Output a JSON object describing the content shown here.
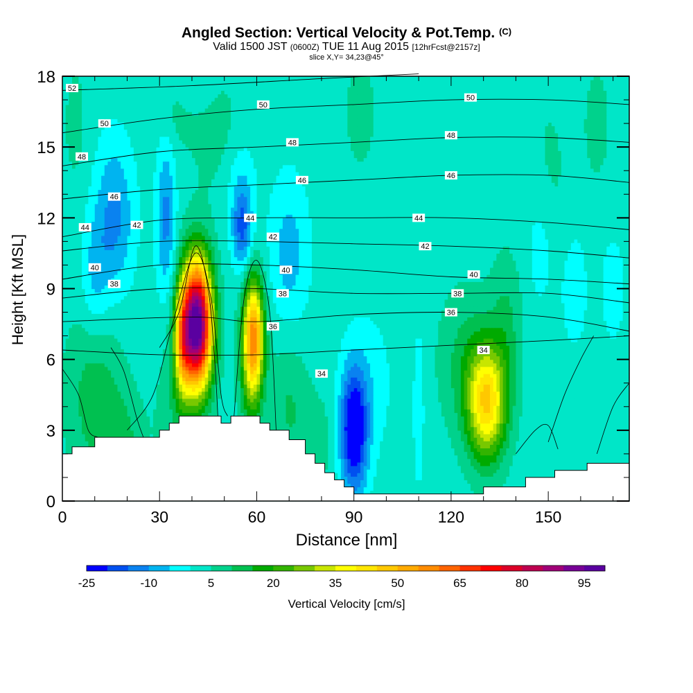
{
  "title_main": "Angled Section: Vertical Velocity & Pot.Temp.",
  "title_suffix": "(C)",
  "subtitle_a": "Valid 1500 JST",
  "subtitle_b": "(0600Z)",
  "subtitle_c": "TUE 11 Aug 2015",
  "subtitle_d": "[12hrFcst@2157z]",
  "slice_text": "slice X,Y= 34,23@45°",
  "chart_data": {
    "type": "heatmap",
    "xlabel": "Distance [nm]",
    "ylabel": "Height [Kft MSL]",
    "xlim": [
      0,
      175
    ],
    "ylim": [
      0,
      18
    ],
    "x_ticks": [
      "0",
      "30",
      "60",
      "90",
      "120",
      "150"
    ],
    "y_ticks": [
      "0",
      "3",
      "6",
      "9",
      "12",
      "15",
      "18"
    ],
    "colorbar_label": "Vertical Velocity [cm/s]",
    "colorbar_ticks": [
      "-25",
      "-10",
      "5",
      "20",
      "35",
      "50",
      "65",
      "80",
      "95"
    ],
    "colorbar_levels": [
      -25,
      -20,
      -15,
      -10,
      -5,
      0,
      5,
      10,
      15,
      20,
      25,
      30,
      35,
      40,
      45,
      50,
      55,
      60,
      65,
      70,
      75,
      80,
      85,
      90,
      95,
      100
    ],
    "colors": [
      "#0000ff",
      "#0050f0",
      "#0a82f0",
      "#00b4f0",
      "#00ffff",
      "#00e6c8",
      "#00d28c",
      "#00c050",
      "#00aa00",
      "#32b400",
      "#78c800",
      "#c8e600",
      "#ffff00",
      "#ffe600",
      "#ffc800",
      "#ffaa00",
      "#ff8c00",
      "#ff6400",
      "#ff3200",
      "#ff0000",
      "#dc0028",
      "#be0050",
      "#a00078",
      "#780096",
      "#5a00a0"
    ],
    "terrain": [
      [
        0,
        2.0
      ],
      [
        3,
        2.0
      ],
      [
        3,
        2.3
      ],
      [
        10,
        2.3
      ],
      [
        10,
        2.7
      ],
      [
        30,
        2.7
      ],
      [
        30,
        3.0
      ],
      [
        33,
        3.0
      ],
      [
        33,
        3.3
      ],
      [
        36,
        3.3
      ],
      [
        36,
        3.6
      ],
      [
        49,
        3.6
      ],
      [
        49,
        3.3
      ],
      [
        52,
        3.3
      ],
      [
        52,
        3.6
      ],
      [
        61,
        3.6
      ],
      [
        61,
        3.3
      ],
      [
        64,
        3.3
      ],
      [
        64,
        3.0
      ],
      [
        70,
        3.0
      ],
      [
        70,
        2.6
      ],
      [
        75,
        2.6
      ],
      [
        75,
        2.0
      ],
      [
        78,
        2.0
      ],
      [
        78,
        1.6
      ],
      [
        81,
        1.6
      ],
      [
        81,
        1.2
      ],
      [
        84,
        1.2
      ],
      [
        84,
        0.9
      ],
      [
        87,
        0.9
      ],
      [
        87,
        0.6
      ],
      [
        90,
        0.6
      ],
      [
        90,
        0.3
      ],
      [
        130,
        0.3
      ],
      [
        130,
        0.6
      ],
      [
        143,
        0.6
      ],
      [
        143,
        1.0
      ],
      [
        152,
        1.0
      ],
      [
        152,
        1.3
      ],
      [
        162,
        1.3
      ],
      [
        162,
        1.6
      ],
      [
        175,
        1.6
      ]
    ],
    "cores": [
      {
        "x": 41.5,
        "z": 7.5,
        "sx": 4.6,
        "sz": 2.7,
        "w": 100
      },
      {
        "x": 37,
        "z": 6.8,
        "sx": 2.6,
        "sz": 2.3,
        "w": 30
      },
      {
        "x": 59,
        "z": 7.0,
        "sx": 3.2,
        "sz": 2.4,
        "w": 52
      },
      {
        "x": 58,
        "z": 5.0,
        "sx": 3.5,
        "sz": 2.5,
        "w": 10
      },
      {
        "x": 131,
        "z": 4.2,
        "sx": 6.0,
        "sz": 2.4,
        "w": 42
      },
      {
        "x": 124,
        "z": 6.0,
        "sx": 8,
        "sz": 3,
        "w": 8
      },
      {
        "x": 137,
        "z": 7.5,
        "sx": 5,
        "sz": 3,
        "w": 8
      },
      {
        "x": 10,
        "z": 4.5,
        "sx": 9,
        "sz": 3.5,
        "w": 10
      },
      {
        "x": 18,
        "z": 2.5,
        "sx": 7,
        "sz": 2,
        "w": 8
      },
      {
        "x": 35,
        "z": 4.0,
        "sx": 6,
        "sz": 3,
        "w": 6
      },
      {
        "x": 70,
        "z": 4.0,
        "sx": 6,
        "sz": 3,
        "w": 8
      },
      {
        "x": 79,
        "z": 2.5,
        "sx": 5,
        "sz": 2,
        "w": 5
      },
      {
        "x": 47,
        "z": 16.0,
        "sx": 8,
        "sz": 3,
        "w": 5
      },
      {
        "x": 35,
        "z": 17.0,
        "sx": 5,
        "sz": 2,
        "w": 5
      },
      {
        "x": 92,
        "z": 16.5,
        "sx": 6,
        "sz": 3,
        "w": 4
      },
      {
        "x": 150,
        "z": 13.0,
        "sx": 6,
        "sz": 4,
        "w": 5
      },
      {
        "x": 4,
        "z": 16.0,
        "sx": 4,
        "sz": 3,
        "w": 4
      },
      {
        "x": 165,
        "z": 16.0,
        "sx": 5,
        "sz": 3,
        "w": 4
      },
      {
        "x": 90,
        "z": 3.0,
        "sx": 4.2,
        "sz": 2.6,
        "w": -31
      },
      {
        "x": 55.5,
        "z": 11.5,
        "sx": 3.0,
        "sz": 1.7,
        "w": -18
      },
      {
        "x": 32,
        "z": 12.0,
        "sx": 3.0,
        "sz": 3.3,
        "w": -14
      },
      {
        "x": 16,
        "z": 12.0,
        "sx": 6,
        "sz": 3.2,
        "w": -14
      },
      {
        "x": 10,
        "z": 9.5,
        "sx": 4,
        "sz": 2.5,
        "w": -8
      },
      {
        "x": 70,
        "z": 10.5,
        "sx": 6,
        "sz": 3.2,
        "w": -10
      },
      {
        "x": 110,
        "z": 4.0,
        "sx": 1.5,
        "sz": 3,
        "w": -8
      },
      {
        "x": 95,
        "z": 5.0,
        "sx": 7,
        "sz": 3,
        "w": -5
      },
      {
        "x": 148,
        "z": 11.0,
        "sx": 5,
        "sz": 3,
        "w": -7
      },
      {
        "x": 158,
        "z": 9.0,
        "sx": 4,
        "sz": 2.5,
        "w": -6
      },
      {
        "x": 170,
        "z": 9.0,
        "sx": 4,
        "sz": 2.5,
        "w": -5
      },
      {
        "x": 55,
        "z": 13.5,
        "sx": 5,
        "sz": 2,
        "w": -6
      },
      {
        "x": 40,
        "z": 17.5,
        "sx": 8,
        "sz": 1,
        "w": -5
      }
    ],
    "isentropes": [
      {
        "label": "34",
        "c": [
          [
            0,
            6.4
          ],
          [
            30,
            6.2
          ],
          [
            60,
            6.2
          ],
          [
            90,
            6.4
          ],
          [
            120,
            6.6
          ],
          [
            150,
            6.8
          ],
          [
            175,
            7.0
          ]
        ],
        "lab": [
          [
            80,
            5.4
          ],
          [
            130,
            6.4
          ]
        ]
      },
      {
        "label": "36",
        "c": [
          [
            0,
            7.6
          ],
          [
            40,
            7.8
          ],
          [
            60,
            7.6
          ],
          [
            90,
            7.9
          ],
          [
            120,
            8.0
          ],
          [
            150,
            7.8
          ],
          [
            175,
            7.2
          ]
        ],
        "lab": [
          [
            65,
            7.4
          ],
          [
            120,
            8.0
          ]
        ]
      },
      {
        "label": "38",
        "c": [
          [
            0,
            8.6
          ],
          [
            30,
            9.0
          ],
          [
            60,
            9.0
          ],
          [
            90,
            8.8
          ],
          [
            120,
            8.8
          ],
          [
            150,
            8.8
          ],
          [
            175,
            8.4
          ]
        ],
        "lab": [
          [
            16,
            9.2
          ],
          [
            68,
            8.8
          ],
          [
            122,
            8.8
          ]
        ]
      },
      {
        "label": "40",
        "c": [
          [
            0,
            9.4
          ],
          [
            30,
            10.0
          ],
          [
            60,
            10.0
          ],
          [
            90,
            9.8
          ],
          [
            120,
            9.5
          ],
          [
            150,
            9.4
          ],
          [
            175,
            9.2
          ]
        ],
        "lab": [
          [
            10,
            9.9
          ],
          [
            69,
            9.8
          ],
          [
            127,
            9.6
          ]
        ]
      },
      {
        "label": "42",
        "c": [
          [
            0,
            10.6
          ],
          [
            30,
            11.0
          ],
          [
            60,
            11.0
          ],
          [
            90,
            10.9
          ],
          [
            120,
            10.8
          ],
          [
            150,
            10.6
          ],
          [
            175,
            10.3
          ]
        ],
        "lab": [
          [
            23,
            11.7
          ],
          [
            65,
            11.2
          ],
          [
            112,
            10.8
          ]
        ]
      },
      {
        "label": "44",
        "c": [
          [
            0,
            11.2
          ],
          [
            30,
            11.9
          ],
          [
            60,
            12.0
          ],
          [
            90,
            12.0
          ],
          [
            120,
            12.0
          ],
          [
            150,
            11.8
          ],
          [
            175,
            11.5
          ]
        ],
        "lab": [
          [
            7,
            11.6
          ],
          [
            58,
            12.0
          ],
          [
            110,
            12.0
          ]
        ]
      },
      {
        "label": "46",
        "c": [
          [
            0,
            12.8
          ],
          [
            30,
            13.2
          ],
          [
            60,
            13.4
          ],
          [
            90,
            13.6
          ],
          [
            120,
            13.8
          ],
          [
            150,
            13.8
          ],
          [
            175,
            13.5
          ]
        ],
        "lab": [
          [
            16,
            12.9
          ],
          [
            74,
            13.6
          ],
          [
            120,
            13.8
          ]
        ]
      },
      {
        "label": "48",
        "c": [
          [
            0,
            14.2
          ],
          [
            30,
            14.8
          ],
          [
            60,
            15.0
          ],
          [
            90,
            15.2
          ],
          [
            120,
            15.4
          ],
          [
            150,
            15.4
          ],
          [
            175,
            15.2
          ]
        ],
        "lab": [
          [
            6,
            14.6
          ],
          [
            71,
            15.2
          ],
          [
            120,
            15.5
          ]
        ]
      },
      {
        "label": "50",
        "c": [
          [
            0,
            15.6
          ],
          [
            30,
            16.2
          ],
          [
            60,
            16.6
          ],
          [
            90,
            16.8
          ],
          [
            120,
            17.0
          ],
          [
            150,
            17.0
          ],
          [
            175,
            16.8
          ]
        ],
        "lab": [
          [
            13,
            16.0
          ],
          [
            62,
            16.8
          ],
          [
            126,
            17.1
          ]
        ]
      },
      {
        "label": "52",
        "c": [
          [
            0,
            17.4
          ],
          [
            40,
            17.6
          ],
          [
            80,
            17.9
          ],
          [
            110,
            18.1
          ]
        ],
        "lab": [
          [
            3,
            17.5
          ]
        ]
      }
    ],
    "extra_contours": [
      [
        [
          20,
          3.0
        ],
        [
          28,
          4.5
        ],
        [
          34,
          7.5
        ],
        [
          41,
          10.5
        ],
        [
          46,
          8.5
        ],
        [
          49,
          4.5
        ],
        [
          51,
          3.6
        ]
      ],
      [
        [
          30,
          6.5
        ],
        [
          36,
          8.0
        ],
        [
          41,
          10.8
        ],
        [
          45,
          9.0
        ],
        [
          47,
          6.0
        ],
        [
          48,
          3.6
        ]
      ],
      [
        [
          53,
          3.6
        ],
        [
          56,
          8.5
        ],
        [
          60,
          10.2
        ],
        [
          64,
          8.0
        ],
        [
          66,
          3.0
        ]
      ],
      [
        [
          0,
          5.6
        ],
        [
          5,
          4.5
        ],
        [
          8,
          3.0
        ],
        [
          11,
          2.7
        ]
      ],
      [
        [
          15,
          6.5
        ],
        [
          19,
          5.5
        ],
        [
          23,
          3.5
        ],
        [
          25,
          2.7
        ]
      ],
      [
        [
          150,
          2.5
        ],
        [
          155,
          4.5
        ],
        [
          160,
          6.0
        ],
        [
          164,
          7.0
        ]
      ],
      [
        [
          165,
          2.0
        ],
        [
          170,
          4.0
        ],
        [
          175,
          5.0
        ]
      ],
      [
        [
          140,
          2.0
        ],
        [
          146,
          3.0
        ],
        [
          150,
          3.2
        ],
        [
          153,
          2.2
        ]
      ]
    ]
  }
}
